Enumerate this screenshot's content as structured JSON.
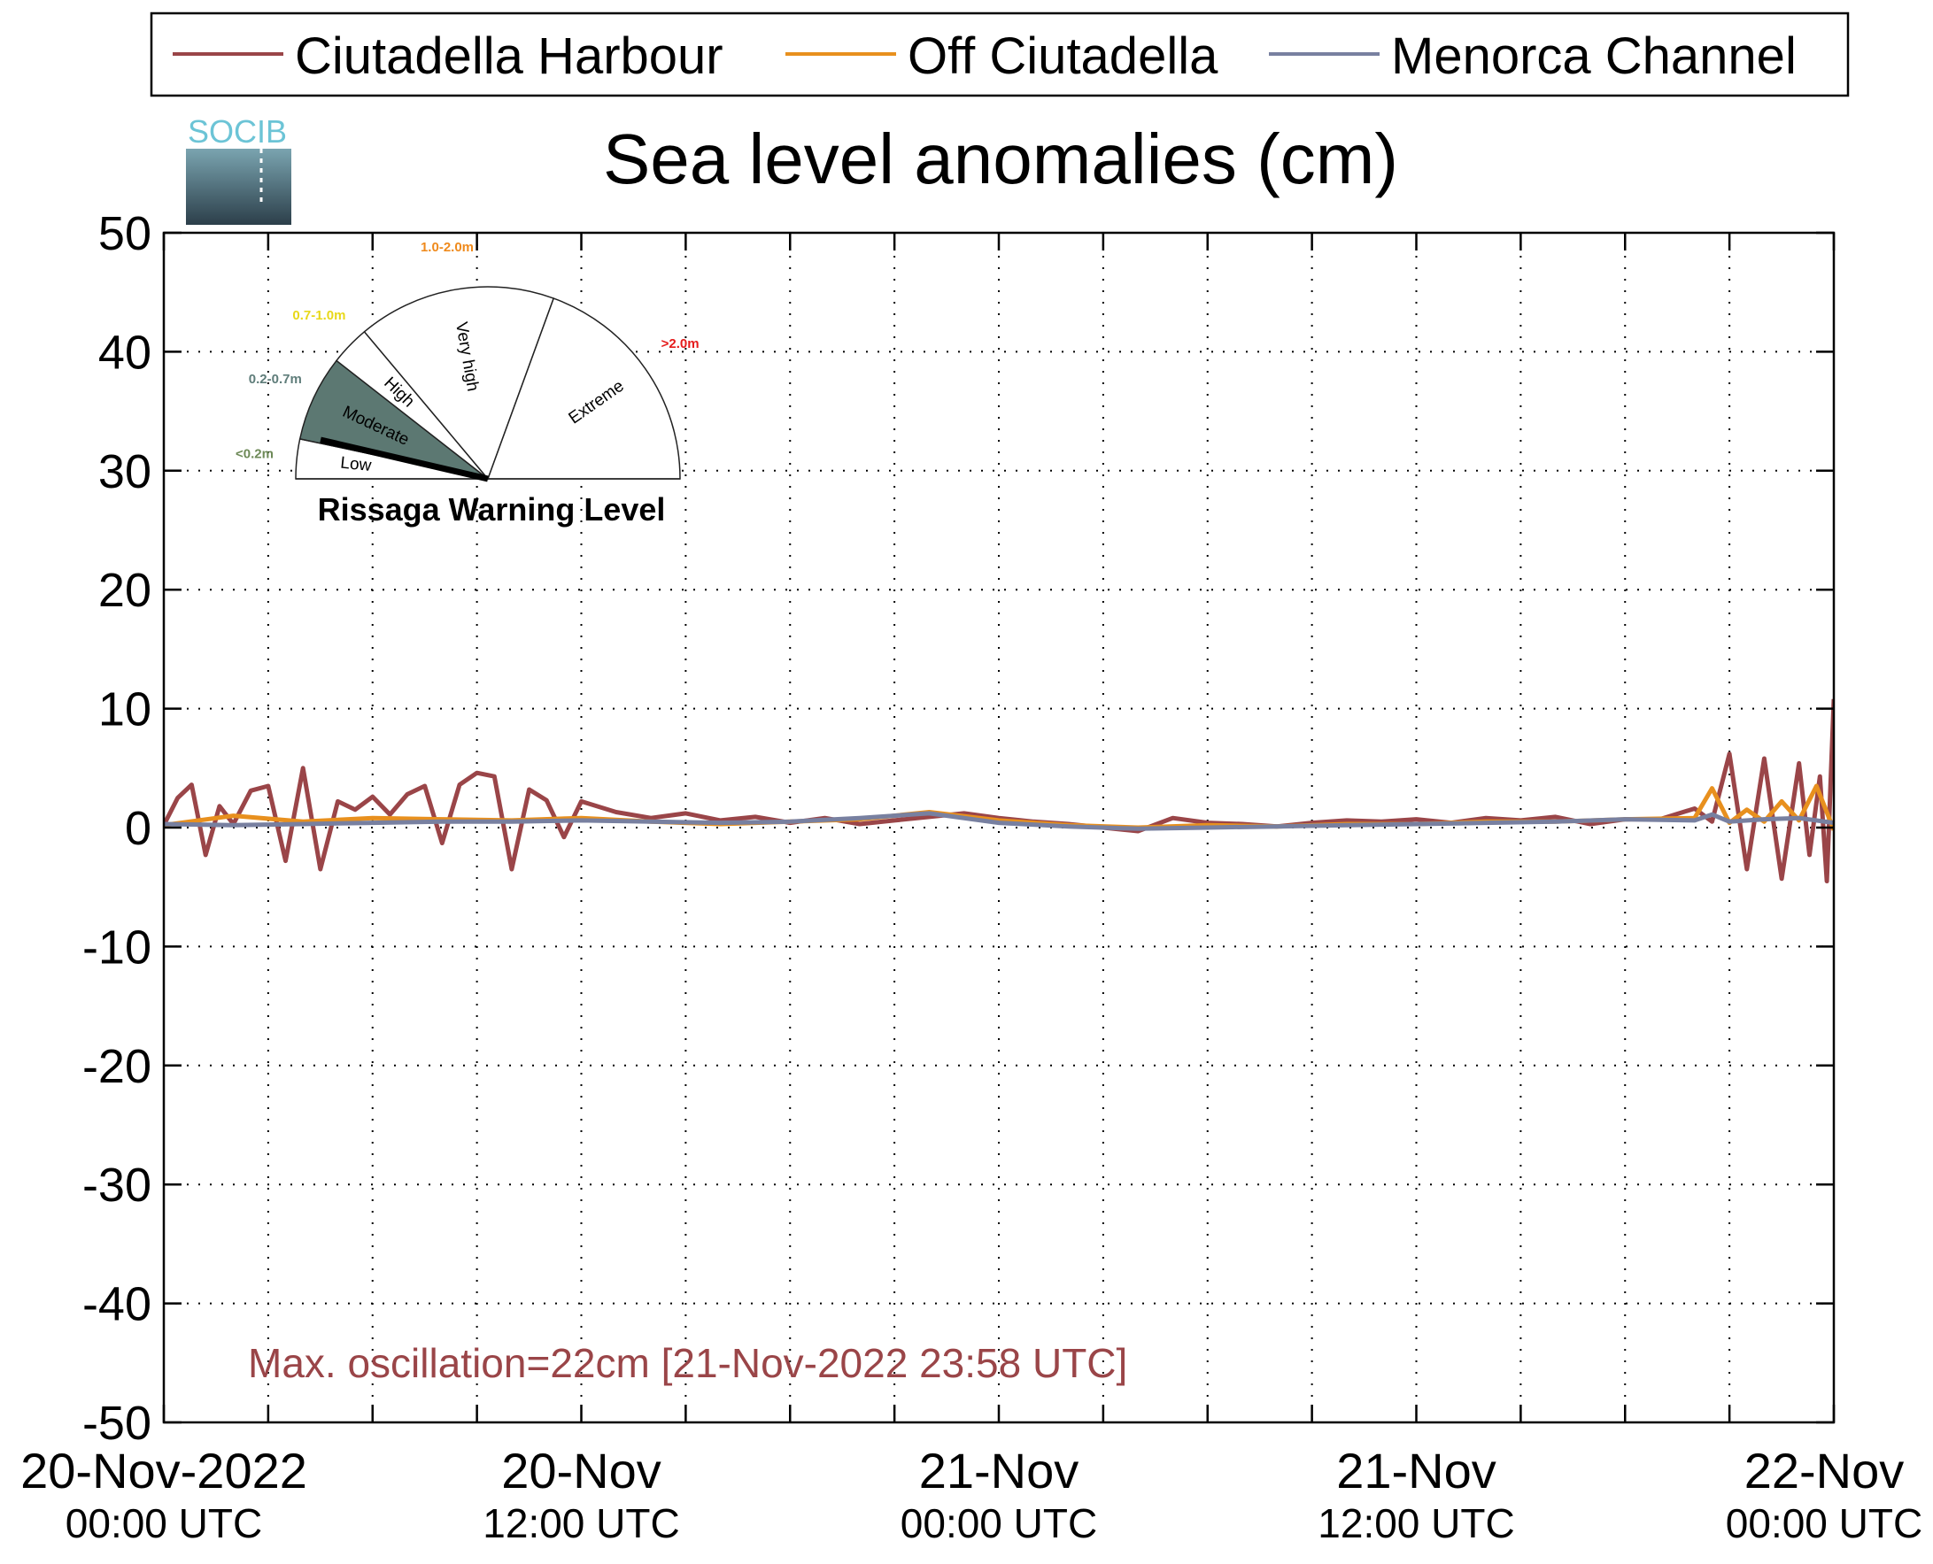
{
  "chart_data": {
    "type": "line",
    "title": "Sea level anomalies (cm)",
    "logo_text": "SOCIB",
    "ylim": [
      -50,
      50
    ],
    "y_ticks": [
      50,
      40,
      30,
      20,
      10,
      0,
      -10,
      -20,
      -30,
      -40,
      -50
    ],
    "y_tick_labels": [
      "50",
      "40",
      "30",
      "20",
      "10",
      "0",
      "-10",
      "-20",
      "-30",
      "-40",
      "-50"
    ],
    "x_range_hours": [
      0,
      48
    ],
    "x_ticks": [
      {
        "hours": 0,
        "line1": "20-Nov-2022",
        "line2": "00:00 UTC"
      },
      {
        "hours": 12,
        "line1": "20-Nov",
        "line2": "12:00 UTC"
      },
      {
        "hours": 24,
        "line1": "21-Nov",
        "line2": "00:00 UTC"
      },
      {
        "hours": 36,
        "line1": "21-Nov",
        "line2": "12:00 UTC"
      },
      {
        "hours": 48,
        "line1": "22-Nov",
        "line2": "00:00 UTC"
      }
    ],
    "x_minor_step_hours": 3,
    "grid": true,
    "legend_position": "top",
    "series": [
      {
        "name": "Ciutadella Harbour",
        "color": "#9a4548",
        "hours": [
          0,
          0.4,
          0.8,
          1.2,
          1.6,
          2,
          2.5,
          3,
          3.5,
          4,
          4.5,
          5,
          5.5,
          6,
          6.5,
          7,
          7.5,
          8,
          8.5,
          9,
          9.5,
          10,
          10.5,
          11,
          11.5,
          12,
          13,
          14,
          15,
          16,
          17,
          18,
          19,
          20,
          21,
          22,
          23,
          24,
          25,
          26,
          27,
          28,
          29,
          30,
          31,
          32,
          33,
          34,
          35,
          36,
          37,
          38,
          39,
          40,
          41,
          42,
          43,
          44,
          44.5,
          45,
          45.5,
          46,
          46.5,
          47,
          47.3,
          47.6,
          47.8,
          48
        ],
        "values": [
          0.2,
          2.5,
          3.6,
          -2.3,
          1.8,
          0.3,
          3.1,
          3.5,
          -2.8,
          5,
          -3.5,
          2.2,
          1.5,
          2.6,
          1.1,
          2.8,
          3.5,
          -1.3,
          3.6,
          4.6,
          4.3,
          -3.5,
          3.2,
          2.3,
          -0.8,
          2.2,
          1.3,
          0.8,
          1.2,
          0.6,
          0.9,
          0.4,
          0.8,
          0.3,
          0.6,
          0.9,
          1.2,
          0.8,
          0.5,
          0.3,
          0,
          -0.3,
          0.8,
          0.4,
          0.3,
          0.1,
          0.4,
          0.6,
          0.5,
          0.7,
          0.4,
          0.8,
          0.6,
          0.9,
          0.3,
          0.7,
          0.7,
          1.6,
          0.5,
          6.2,
          -3.5,
          5.8,
          -4.3,
          5.4,
          -2.3,
          4.3,
          -4.5,
          10.8
        ]
      },
      {
        "name": "Off Ciutadella",
        "color": "#e8901e",
        "hours": [
          0,
          2,
          4,
          6,
          8,
          10,
          12,
          14,
          16,
          18,
          20,
          22,
          24,
          26,
          28,
          30,
          32,
          34,
          36,
          38,
          40,
          42,
          44,
          44.5,
          45,
          45.5,
          46,
          46.5,
          47,
          47.5,
          48
        ],
        "values": [
          0.2,
          1,
          0.5,
          0.8,
          0.7,
          0.6,
          0.8,
          0.5,
          0.3,
          0.5,
          0.7,
          1.3,
          0.6,
          0.2,
          0,
          0.2,
          0.1,
          0.3,
          0.3,
          0.5,
          0.5,
          0.7,
          0.8,
          3.3,
          0.4,
          1.5,
          0.5,
          2.2,
          0.6,
          3.5,
          -0.2
        ]
      },
      {
        "name": "Menorca Channel",
        "color": "#7880a0",
        "hours": [
          0,
          2,
          4,
          6,
          8,
          10,
          12,
          14,
          16,
          18,
          20,
          22,
          24,
          26,
          28,
          30,
          32,
          34,
          36,
          38,
          40,
          42,
          44,
          44.5,
          45,
          46,
          47,
          48
        ],
        "values": [
          0.3,
          0.2,
          0.3,
          0.4,
          0.5,
          0.5,
          0.6,
          0.5,
          0.4,
          0.5,
          0.8,
          1.2,
          0.4,
          0.1,
          -0.1,
          0,
          0.1,
          0.2,
          0.3,
          0.4,
          0.5,
          0.7,
          0.6,
          1.1,
          0.5,
          0.7,
          0.8,
          0.4
        ]
      }
    ],
    "annotation": {
      "text": "Max. oscillation=22cm [21-Nov-2022 23:58 UTC]",
      "color": "#9a4548"
    },
    "warning_gauge": {
      "title": "Rissaga Warning Level",
      "current_level": "Low",
      "levels": [
        {
          "name": "Low",
          "range": "<0.2m",
          "range_color": "#6e8a58",
          "fill": "#ffffff"
        },
        {
          "name": "Moderate",
          "range": "0.2-0.7m",
          "range_color": "#5f7d7a",
          "fill": "#5c7872"
        },
        {
          "name": "High",
          "range": "0.7-1.0m",
          "range_color": "#e8d81a",
          "fill": "#ffffff"
        },
        {
          "name": "Very high",
          "range": "1.0-2.0m",
          "range_color": "#ef8a1c",
          "fill": "#ffffff"
        },
        {
          "name": "Extreme",
          "range": ">2.0m",
          "range_color": "#e51c1c",
          "fill": "#ffffff"
        }
      ]
    }
  }
}
